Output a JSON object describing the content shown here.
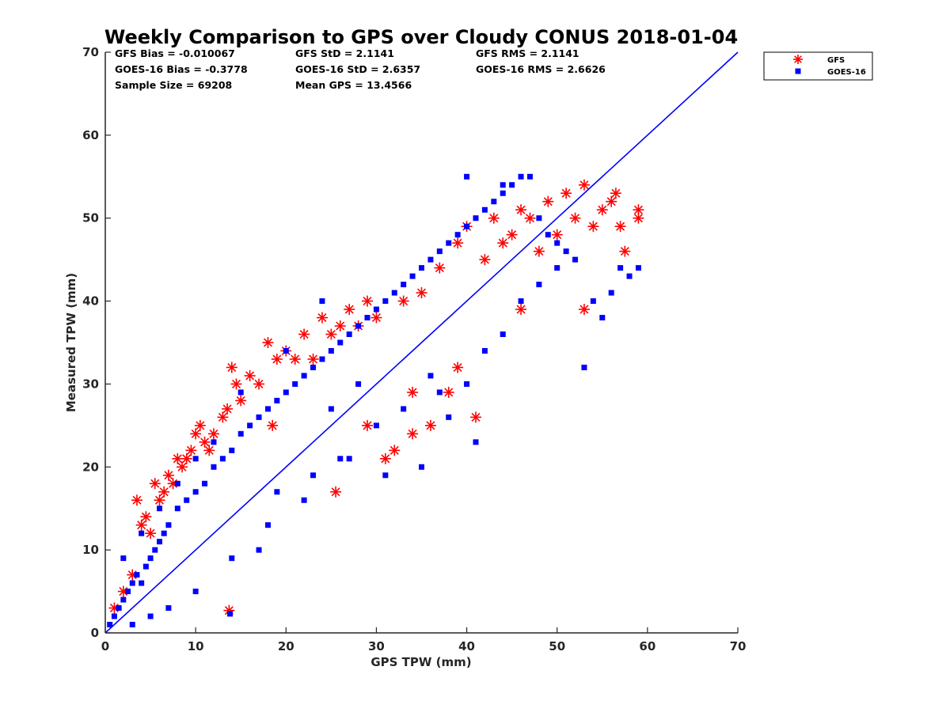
{
  "colors": {
    "gfs": "#ff0000",
    "goes": "#0000ff",
    "axis": "#262626"
  },
  "stats": {
    "gfs_bias": "GFS Bias = -0.010067",
    "gfs_std": "GFS StD = 2.1141",
    "gfs_rms": "GFS RMS = 2.1141",
    "goes_bias": "GOES-16 Bias = -0.3778",
    "goes_std": "GOES-16 StD = 2.6357",
    "goes_rms": "GOES-16 RMS = 2.6626",
    "sample_size": "Sample Size = 69208",
    "mean_gps": "Mean GPS = 13.4566"
  },
  "chart_data": {
    "type": "scatter",
    "title": "Weekly Comparison to GPS over Cloudy CONUS 2018-01-04",
    "xlabel": "GPS TPW (mm)",
    "ylabel": "Measured TPW (mm)",
    "xlim": [
      0,
      70
    ],
    "ylim": [
      0,
      70
    ],
    "xticks": [
      "0",
      "10",
      "20",
      "30",
      "40",
      "50",
      "60",
      "70"
    ],
    "yticks": [
      "0",
      "10",
      "20",
      "30",
      "40",
      "50",
      "60",
      "70"
    ],
    "grid": false,
    "legend_position": "outside-top-right",
    "reference_line": {
      "x": [
        0,
        70
      ],
      "y": [
        0,
        70
      ]
    },
    "series": [
      {
        "name": "GFS",
        "marker": "asterisk",
        "color": "#ff0000",
        "points": [
          [
            1,
            3
          ],
          [
            2,
            5
          ],
          [
            3,
            7
          ],
          [
            3.5,
            16
          ],
          [
            4,
            13
          ],
          [
            4.5,
            14
          ],
          [
            5,
            12
          ],
          [
            5.5,
            18
          ],
          [
            6,
            16
          ],
          [
            6.5,
            17
          ],
          [
            7,
            19
          ],
          [
            7.5,
            18
          ],
          [
            8,
            21
          ],
          [
            8.5,
            20
          ],
          [
            9,
            21
          ],
          [
            9.5,
            22
          ],
          [
            10,
            24
          ],
          [
            10.5,
            25
          ],
          [
            11,
            23
          ],
          [
            11.5,
            22
          ],
          [
            12,
            24
          ],
          [
            13,
            26
          ],
          [
            13.5,
            27
          ],
          [
            13.7,
            2.7
          ],
          [
            14,
            32
          ],
          [
            15,
            28
          ],
          [
            16,
            31
          ],
          [
            17,
            30
          ],
          [
            18,
            35
          ],
          [
            19,
            33
          ],
          [
            20,
            34
          ],
          [
            21,
            33
          ],
          [
            22,
            36
          ],
          [
            23,
            33
          ],
          [
            24,
            38
          ],
          [
            25,
            36
          ],
          [
            25.5,
            17
          ],
          [
            26,
            37
          ],
          [
            27,
            39
          ],
          [
            28,
            37
          ],
          [
            29,
            40
          ],
          [
            30,
            38
          ],
          [
            31,
            21
          ],
          [
            32,
            22
          ],
          [
            33,
            40
          ],
          [
            34,
            24
          ],
          [
            35,
            41
          ],
          [
            36,
            25
          ],
          [
            37,
            44
          ],
          [
            38,
            29
          ],
          [
            39,
            47
          ],
          [
            40,
            49
          ],
          [
            41,
            26
          ],
          [
            42,
            45
          ],
          [
            43,
            50
          ],
          [
            44,
            47
          ],
          [
            45,
            48
          ],
          [
            46,
            51
          ],
          [
            47,
            50
          ],
          [
            48,
            46
          ],
          [
            49,
            52
          ],
          [
            50,
            48
          ],
          [
            51,
            53
          ],
          [
            52,
            50
          ],
          [
            53,
            39
          ],
          [
            53,
            54
          ],
          [
            54,
            49
          ],
          [
            55,
            51
          ],
          [
            56,
            52
          ],
          [
            56.5,
            53
          ],
          [
            57,
            49
          ],
          [
            57.5,
            46
          ],
          [
            59,
            51
          ],
          [
            59,
            50
          ],
          [
            18.5,
            25
          ],
          [
            14.5,
            30
          ],
          [
            29,
            25
          ],
          [
            34,
            29
          ],
          [
            39,
            32
          ],
          [
            46,
            39
          ]
        ]
      },
      {
        "name": "GOES-16",
        "marker": "square",
        "color": "#0000ff",
        "points": [
          [
            0.5,
            1
          ],
          [
            1,
            2
          ],
          [
            1.5,
            3
          ],
          [
            2,
            4
          ],
          [
            2.5,
            5
          ],
          [
            3,
            6
          ],
          [
            3.5,
            7
          ],
          [
            4,
            6
          ],
          [
            4.5,
            8
          ],
          [
            5,
            9
          ],
          [
            5.5,
            10
          ],
          [
            6,
            11
          ],
          [
            6.5,
            12
          ],
          [
            7,
            13
          ],
          [
            8,
            15
          ],
          [
            9,
            16
          ],
          [
            10,
            17
          ],
          [
            11,
            18
          ],
          [
            12,
            20
          ],
          [
            13,
            21
          ],
          [
            13.8,
            2.3
          ],
          [
            14,
            22
          ],
          [
            15,
            24
          ],
          [
            16,
            25
          ],
          [
            17,
            26
          ],
          [
            18,
            27
          ],
          [
            19,
            28
          ],
          [
            20,
            29
          ],
          [
            21,
            30
          ],
          [
            22,
            31
          ],
          [
            23,
            32
          ],
          [
            24,
            33
          ],
          [
            25,
            34
          ],
          [
            26,
            35
          ],
          [
            27,
            36
          ],
          [
            28,
            37
          ],
          [
            29,
            38
          ],
          [
            30,
            39
          ],
          [
            31,
            40
          ],
          [
            32,
            41
          ],
          [
            33,
            42
          ],
          [
            34,
            43
          ],
          [
            35,
            44
          ],
          [
            36,
            45
          ],
          [
            37,
            46
          ],
          [
            38,
            47
          ],
          [
            39,
            48
          ],
          [
            40,
            49
          ],
          [
            41,
            50
          ],
          [
            42,
            51
          ],
          [
            43,
            52
          ],
          [
            44,
            53
          ],
          [
            45,
            54
          ],
          [
            46,
            55
          ],
          [
            47,
            55
          ],
          [
            48,
            50
          ],
          [
            49,
            48
          ],
          [
            50,
            47
          ],
          [
            51,
            46
          ],
          [
            52,
            45
          ],
          [
            53,
            32
          ],
          [
            54,
            40
          ],
          [
            55,
            38
          ],
          [
            56,
            41
          ],
          [
            57,
            44
          ],
          [
            58,
            43
          ],
          [
            59,
            44
          ],
          [
            2,
            9
          ],
          [
            4,
            12
          ],
          [
            6,
            15
          ],
          [
            8,
            18
          ],
          [
            10,
            21
          ],
          [
            12,
            23
          ],
          [
            15,
            29
          ],
          [
            20,
            34
          ],
          [
            25,
            27
          ],
          [
            28,
            30
          ],
          [
            30,
            25
          ],
          [
            33,
            27
          ],
          [
            36,
            31
          ],
          [
            38,
            26
          ],
          [
            40,
            30
          ],
          [
            41,
            23
          ],
          [
            42,
            34
          ],
          [
            44,
            36
          ],
          [
            46,
            40
          ],
          [
            48,
            42
          ],
          [
            50,
            44
          ],
          [
            31,
            19
          ],
          [
            35,
            20
          ],
          [
            27,
            21
          ],
          [
            22,
            16
          ],
          [
            18,
            13
          ],
          [
            14,
            9
          ],
          [
            10,
            5
          ],
          [
            7,
            3
          ],
          [
            5,
            2
          ],
          [
            3,
            1
          ],
          [
            24,
            40
          ],
          [
            40,
            55
          ],
          [
            44,
            54
          ],
          [
            23,
            19
          ],
          [
            17,
            10
          ],
          [
            19,
            17
          ],
          [
            26,
            21
          ],
          [
            37,
            29
          ]
        ]
      }
    ]
  }
}
